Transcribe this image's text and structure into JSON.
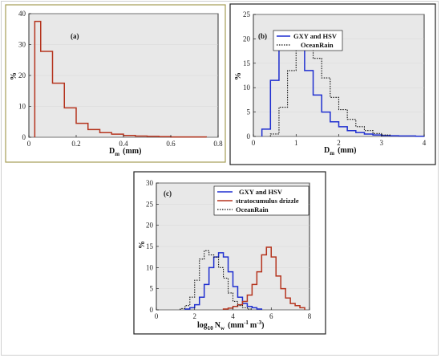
{
  "chart_data": [
    {
      "type": "histogram",
      "panel_label": "(a)",
      "xlabel_main": "D",
      "xlabel_sub": "m",
      "xlabel_unit": "(mm)",
      "ylabel": "%",
      "xlim": [
        0,
        0.8
      ],
      "ylim": [
        0,
        40
      ],
      "xticks": [
        "0",
        "0.2",
        "0.4",
        "0.6",
        "0.8"
      ],
      "yticks": [
        "0",
        "10",
        "20",
        "30",
        "40"
      ],
      "frame_color": "#a59d55",
      "series": [
        {
          "color": "#b5341e",
          "style": "solid",
          "bin_edges": [
            0.025,
            0.05,
            0.1,
            0.15,
            0.2,
            0.25,
            0.3,
            0.35,
            0.4,
            0.45,
            0.5,
            0.55,
            0.6,
            0.65,
            0.7,
            0.75
          ],
          "values": [
            37.5,
            27.8,
            17.5,
            9.5,
            4.5,
            2.5,
            1.5,
            1.0,
            0.6,
            0.4,
            0.3,
            0.2,
            0.1,
            0.1,
            0.1
          ]
        }
      ]
    },
    {
      "type": "histogram",
      "panel_label": "(b)",
      "xlabel_main": "D",
      "xlabel_sub": "m",
      "xlabel_unit": "(mm)",
      "ylabel": "%",
      "xlim": [
        0,
        4
      ],
      "ylim": [
        0,
        25
      ],
      "xticks": [
        "0",
        "1",
        "2",
        "3",
        "4"
      ],
      "yticks": [
        "0",
        "5",
        "10",
        "15",
        "20",
        "25"
      ],
      "frame_color": "#222222",
      "legend_position": "top-left",
      "series": [
        {
          "name": "GXY and HSV",
          "color": "#1f2fd0",
          "style": "solid",
          "bin_edges": [
            0.2,
            0.4,
            0.6,
            0.8,
            1.0,
            1.2,
            1.4,
            1.6,
            1.8,
            2.0,
            2.2,
            2.4,
            2.6,
            2.8,
            3.0,
            3.2,
            3.4,
            3.6,
            3.8,
            4.0
          ],
          "values": [
            1.5,
            11.5,
            19.5,
            20.8,
            17.8,
            13.5,
            8.5,
            5.0,
            3.0,
            2.0,
            1.2,
            0.8,
            0.5,
            0.3,
            0.2,
            0.15,
            0.1,
            0.1,
            0.05
          ]
        },
        {
          "name": "OceanRain",
          "color": "#111111",
          "style": "dotted",
          "bin_edges": [
            0.4,
            0.6,
            0.8,
            1.0,
            1.2,
            1.4,
            1.6,
            1.8,
            2.0,
            2.2,
            2.4,
            2.6,
            2.8,
            3.0,
            3.2
          ],
          "values": [
            0.5,
            6.0,
            13.5,
            17.8,
            18.3,
            16.0,
            12.0,
            8.0,
            5.5,
            3.5,
            2.0,
            1.2,
            0.6,
            0.3
          ]
        }
      ]
    },
    {
      "type": "histogram",
      "panel_label": "(c)",
      "xlabel_main": "log",
      "xlabel_sub": "10",
      "xlabel_rest": "N",
      "xlabel_rest_sub": "w",
      "xlabel_unit_pre": "(mm",
      "xlabel_unit_sup1": "-1",
      "xlabel_unit_mid": "m",
      "xlabel_unit_sup2": "-3",
      "xlabel_unit_post": ")",
      "ylabel": "%",
      "xlim": [
        0,
        8
      ],
      "ylim": [
        0,
        30
      ],
      "xticks": [
        "0",
        "2",
        "4",
        "6",
        "8"
      ],
      "yticks": [
        "0",
        "5",
        "10",
        "15",
        "20",
        "25",
        "30"
      ],
      "frame_color": "#222222",
      "legend_position": "top-right",
      "series": [
        {
          "name": "GXY and HSV",
          "color": "#1f2fd0",
          "style": "solid",
          "bin_edges": [
            1.5,
            1.75,
            2.0,
            2.25,
            2.5,
            2.75,
            3.0,
            3.25,
            3.5,
            3.75,
            4.0,
            4.25,
            4.5,
            4.75,
            5.0,
            5.25,
            5.5
          ],
          "values": [
            0.2,
            0.5,
            1.2,
            3.0,
            6.0,
            10.0,
            12.5,
            13.5,
            12.5,
            9.0,
            5.5,
            3.0,
            1.5,
            0.8,
            0.5,
            0.2
          ]
        },
        {
          "name": "stratocumulus drizzle",
          "color": "#b5341e",
          "style": "solid",
          "bin_edges": [
            3.5,
            3.75,
            4.0,
            4.25,
            4.5,
            4.75,
            5.0,
            5.25,
            5.5,
            5.75,
            6.0,
            6.25,
            6.5,
            6.75,
            7.0,
            7.25,
            7.5,
            7.75
          ],
          "values": [
            0.2,
            0.4,
            0.8,
            1.2,
            2.0,
            3.5,
            6.0,
            9.0,
            13.0,
            14.8,
            12.5,
            8.0,
            5.0,
            2.8,
            1.5,
            1.0,
            0.5
          ]
        },
        {
          "name": "OceanRain",
          "color": "#111111",
          "style": "dotted",
          "bin_edges": [
            1.25,
            1.5,
            1.75,
            2.0,
            2.25,
            2.5,
            2.75,
            3.0,
            3.25,
            3.5,
            3.75,
            4.0,
            4.25,
            4.5,
            4.75,
            5.0
          ],
          "values": [
            0.3,
            1.0,
            3.0,
            7.0,
            12.0,
            14.0,
            13.0,
            12.5,
            10.0,
            7.5,
            4.0,
            2.0,
            1.0,
            0.5,
            0.2
          ]
        }
      ]
    }
  ]
}
